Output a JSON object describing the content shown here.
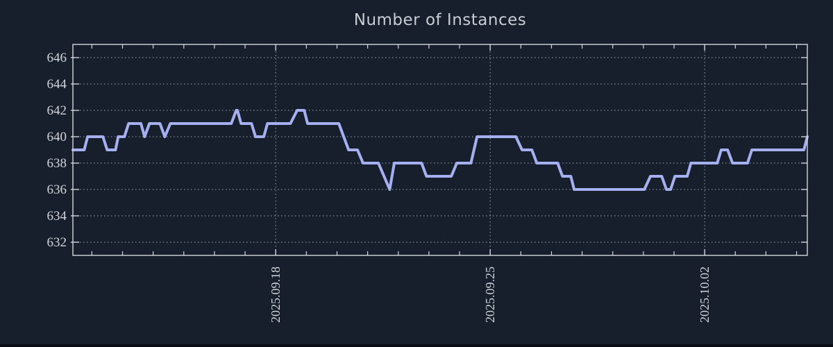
{
  "window": {
    "colors": {
      "background": "#161f2b",
      "bottom_edge": "#0a0e14"
    }
  },
  "chart_data": {
    "type": "line",
    "title": "Number of Instances",
    "legend": "none",
    "grid": "dotted",
    "colors": {
      "line": "#a6affo_FIX",
      "line_stroke": "#a6aff0",
      "grid": "#c8ccd2",
      "border": "#d4d7dc",
      "tick_text": "#d2d6db",
      "title_text": "#c9ced5"
    },
    "x_axis": {
      "unit": "days since 2025-09-18 00:00",
      "min": -6.62,
      "max": 17.35,
      "minor_tick_step_days": 1,
      "major_ticks": [
        {
          "pos": 0,
          "label": "2025.09.18"
        },
        {
          "pos": 7,
          "label": "2025.09.25"
        },
        {
          "pos": 14,
          "label": "2025.10.02"
        }
      ]
    },
    "y_axis": {
      "min": 631,
      "max": 647,
      "ticks": [
        632,
        634,
        636,
        638,
        640,
        642,
        644,
        646
      ]
    },
    "series": [
      {
        "name": "instances",
        "points": [
          [
            -6.62,
            639
          ],
          [
            -6.25,
            639
          ],
          [
            -6.14,
            640
          ],
          [
            -5.64,
            640
          ],
          [
            -5.5,
            639
          ],
          [
            -5.23,
            639
          ],
          [
            -5.14,
            640
          ],
          [
            -4.94,
            640
          ],
          [
            -4.8,
            641
          ],
          [
            -4.4,
            641
          ],
          [
            -4.28,
            640
          ],
          [
            -4.12,
            641
          ],
          [
            -3.78,
            641
          ],
          [
            -3.62,
            640
          ],
          [
            -3.44,
            641
          ],
          [
            -1.45,
            641
          ],
          [
            -1.29,
            642
          ],
          [
            -1.25,
            642
          ],
          [
            -1.13,
            641
          ],
          [
            -0.79,
            641
          ],
          [
            -0.66,
            640
          ],
          [
            -0.39,
            640
          ],
          [
            -0.27,
            641
          ],
          [
            0.48,
            641
          ],
          [
            0.7,
            642
          ],
          [
            0.93,
            642
          ],
          [
            1.04,
            641
          ],
          [
            2.06,
            641
          ],
          [
            2.38,
            639
          ],
          [
            2.67,
            639
          ],
          [
            2.85,
            638
          ],
          [
            3.35,
            638
          ],
          [
            3.72,
            636
          ],
          [
            3.87,
            638
          ],
          [
            4.76,
            638
          ],
          [
            4.92,
            637
          ],
          [
            5.73,
            637
          ],
          [
            5.91,
            638
          ],
          [
            6.37,
            638
          ],
          [
            6.57,
            640
          ],
          [
            7.84,
            640
          ],
          [
            8.04,
            639
          ],
          [
            8.36,
            639
          ],
          [
            8.52,
            638
          ],
          [
            9.2,
            638
          ],
          [
            9.36,
            637
          ],
          [
            9.63,
            637
          ],
          [
            9.74,
            636
          ],
          [
            12.03,
            636
          ],
          [
            12.23,
            637
          ],
          [
            12.6,
            637
          ],
          [
            12.75,
            636
          ],
          [
            12.89,
            636
          ],
          [
            13.03,
            637
          ],
          [
            13.43,
            637
          ],
          [
            13.55,
            638
          ],
          [
            14.41,
            638
          ],
          [
            14.54,
            639
          ],
          [
            14.75,
            639
          ],
          [
            14.91,
            638
          ],
          [
            15.4,
            638
          ],
          [
            15.54,
            639
          ],
          [
            17.24,
            639
          ],
          [
            17.35,
            640
          ]
        ]
      }
    ]
  }
}
